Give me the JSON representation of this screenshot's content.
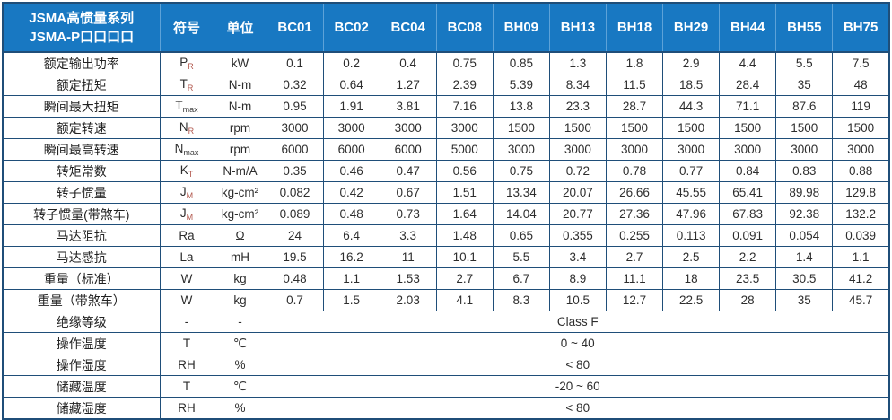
{
  "table": {
    "title_line1": "JSMA高惯量系列",
    "title_line2": "JSMA-P口口口口",
    "col_symbol": "符号",
    "col_unit": "单位",
    "models": [
      "BC01",
      "BC02",
      "BC04",
      "BC08",
      "BH09",
      "BH13",
      "BH18",
      "BH29",
      "BH44",
      "BH55",
      "BH75"
    ],
    "rows": [
      {
        "label": "额定输出功率",
        "sym": "P",
        "sub": "R",
        "unit": "kW",
        "values": [
          "0.1",
          "0.2",
          "0.4",
          "0.75",
          "0.85",
          "1.3",
          "1.8",
          "2.9",
          "4.4",
          "5.5",
          "7.5"
        ]
      },
      {
        "label": "额定扭矩",
        "sym": "T",
        "sub": "R",
        "unit": "N-m",
        "values": [
          "0.32",
          "0.64",
          "1.27",
          "2.39",
          "5.39",
          "8.34",
          "11.5",
          "18.5",
          "28.4",
          "35",
          "48"
        ]
      },
      {
        "label": "瞬间最大扭矩",
        "sym": "T",
        "sub": "max",
        "unit": "N-m",
        "values": [
          "0.95",
          "1.91",
          "3.81",
          "7.16",
          "13.8",
          "23.3",
          "28.7",
          "44.3",
          "71.1",
          "87.6",
          "119"
        ]
      },
      {
        "label": "额定转速",
        "sym": "N",
        "sub": "R",
        "unit": "rpm",
        "values": [
          "3000",
          "3000",
          "3000",
          "3000",
          "1500",
          "1500",
          "1500",
          "1500",
          "1500",
          "1500",
          "1500"
        ]
      },
      {
        "label": "瞬间最高转速",
        "sym": "N",
        "sub": "max",
        "unit": "rpm",
        "values": [
          "6000",
          "6000",
          "6000",
          "5000",
          "3000",
          "3000",
          "3000",
          "3000",
          "3000",
          "3000",
          "3000"
        ]
      },
      {
        "label": "转矩常数",
        "sym": "K",
        "sub": "T",
        "unit": "N-m/A",
        "values": [
          "0.35",
          "0.46",
          "0.47",
          "0.56",
          "0.75",
          "0.72",
          "0.78",
          "0.77",
          "0.84",
          "0.83",
          "0.88"
        ]
      },
      {
        "label": "转子惯量",
        "sym": "J",
        "sub": "M",
        "unit": "kg-cm²",
        "values": [
          "0.082",
          "0.42",
          "0.67",
          "1.51",
          "13.34",
          "20.07",
          "26.66",
          "45.55",
          "65.41",
          "89.98",
          "129.8"
        ]
      },
      {
        "label": "转子惯量(带煞车)",
        "sym": "J",
        "sub": "M",
        "unit": "kg-cm²",
        "values": [
          "0.089",
          "0.48",
          "0.73",
          "1.64",
          "14.04",
          "20.77",
          "27.36",
          "47.96",
          "67.83",
          "92.38",
          "132.2"
        ]
      },
      {
        "label": "马达阻抗",
        "sym": "Ra",
        "sub": "",
        "unit": "Ω",
        "values": [
          "24",
          "6.4",
          "3.3",
          "1.48",
          "0.65",
          "0.355",
          "0.255",
          "0.113",
          "0.091",
          "0.054",
          "0.039"
        ]
      },
      {
        "label": "马达感抗",
        "sym": "La",
        "sub": "",
        "unit": "mH",
        "values": [
          "19.5",
          "16.2",
          "11",
          "10.1",
          "5.5",
          "3.4",
          "2.7",
          "2.5",
          "2.2",
          "1.4",
          "1.1"
        ]
      },
      {
        "label": "重量（标准）",
        "sym": "W",
        "sub": "",
        "unit": "kg",
        "values": [
          "0.48",
          "1.1",
          "1.53",
          "2.7",
          "6.7",
          "8.9",
          "11.1",
          "18",
          "23.5",
          "30.5",
          "41.2"
        ]
      },
      {
        "label": "重量（带煞车）",
        "sym": "W",
        "sub": "",
        "unit": "kg",
        "values": [
          "0.7",
          "1.5",
          "2.03",
          "4.1",
          "8.3",
          "10.5",
          "12.7",
          "22.5",
          "28",
          "35",
          "45.7"
        ]
      },
      {
        "label": "绝缘等级",
        "sym": "-",
        "sub": "",
        "unit": "-",
        "merged": "Class F"
      },
      {
        "label": "操作温度",
        "sym": "T",
        "sub": "",
        "unit": "℃",
        "merged": "0 ~ 40"
      },
      {
        "label": "操作湿度",
        "sym": "RH",
        "sub": "",
        "unit": "%",
        "merged": "< 80"
      },
      {
        "label": "储藏温度",
        "sym": "T",
        "sub": "",
        "unit": "℃",
        "merged": "-20 ~ 60"
      },
      {
        "label": "储藏湿度",
        "sym": "RH",
        "sub": "",
        "unit": "%",
        "merged": "< 80"
      }
    ],
    "colors": {
      "header_bg": "#1878c2",
      "grid_border": "#1f4e79",
      "header_divider": "#5da2d8",
      "subscript_red": "#b2584e"
    }
  }
}
